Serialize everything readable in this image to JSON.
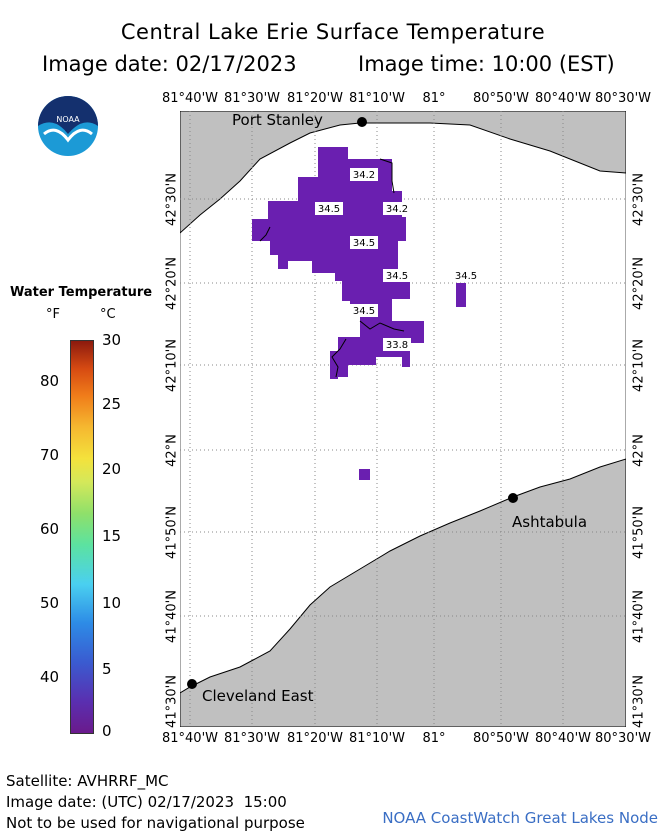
{
  "header": {
    "title": "Central Lake Erie Surface Temperature",
    "image_date": "Image date: 02/17/2023",
    "image_time": "Image time: 10:00 (EST)"
  },
  "map": {
    "longitude_labels": [
      "81°40'W",
      "81°30'W",
      "81°20'W",
      "81°10'W",
      "81°",
      "80°50'W",
      "80°40'W",
      "80°30'W"
    ],
    "latitude_labels": [
      "42°30'N",
      "42°20'N",
      "42°10'N",
      "42°N",
      "41°50'N",
      "41°40'N",
      "41°30'N"
    ],
    "cities": [
      {
        "name": "Port Stanley"
      },
      {
        "name": "Ashtabula"
      },
      {
        "name": "Cleveland East"
      }
    ],
    "temperature_labels": [
      "34.2",
      "34.5",
      "34.2",
      "34.5",
      "34.5",
      "34.5",
      "34.5",
      "33.8"
    ],
    "colors": {
      "land": "#c0c0c0",
      "water": "#ffffff",
      "ice_temp": "#6a1fb0"
    }
  },
  "legend": {
    "title": "Water Temperature",
    "unit_f": "°F",
    "unit_c": "°C",
    "f_ticks": [
      "80",
      "70",
      "60",
      "50",
      "40"
    ],
    "c_ticks": [
      "30",
      "25",
      "20",
      "15",
      "10",
      "5",
      "0"
    ]
  },
  "footer": {
    "satellite": "Satellite: AVHRRF_MC",
    "utc_date": "Image date: (UTC) 02/17/2023  15:00",
    "disclaimer": "Not to be used for navigational purpose",
    "credit": "NOAA CoastWatch Great Lakes Node"
  }
}
